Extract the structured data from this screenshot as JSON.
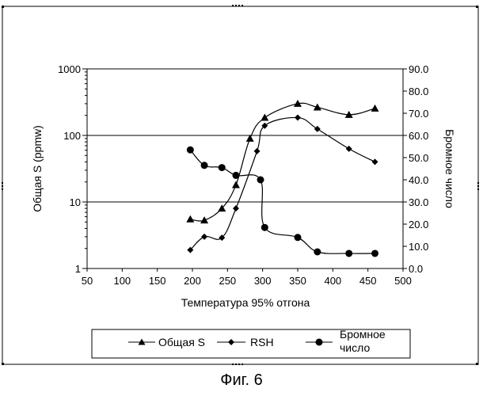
{
  "caption": "Фиг. 6",
  "chart_data": {
    "type": "line",
    "xlabel": "Температура 95% отгона",
    "ylabel_left": "Общая S (ppmw)",
    "ylabel_right": "Бромное число",
    "xlim": [
      50,
      500
    ],
    "x_ticks": [
      50,
      100,
      150,
      200,
      250,
      300,
      350,
      400,
      450,
      500
    ],
    "ylim_left": [
      1,
      1000
    ],
    "y_scale_left": "log",
    "y_ticks_left": [
      1,
      10,
      100,
      1000
    ],
    "ylim_right": [
      0,
      90
    ],
    "y_ticks_right": [
      "0.0",
      "10.0",
      "20.0",
      "30.0",
      "40.0",
      "50.0",
      "60.0",
      "70.0",
      "80.0",
      "90.0"
    ],
    "grid": "horizontal at left-axis decades",
    "legend_position": "bottom",
    "series": [
      {
        "name": "Общая S",
        "axis": "left",
        "marker": "triangle",
        "x": [
          197,
          217,
          242,
          262,
          282,
          303,
          350,
          378,
          423,
          460
        ],
        "y": [
          5.5,
          5.3,
          8,
          18,
          90,
          185,
          300,
          265,
          205,
          255
        ]
      },
      {
        "name": "RSH",
        "axis": "left",
        "marker": "diamond",
        "x": [
          197,
          217,
          242,
          262,
          292,
          303,
          350,
          378,
          423,
          460
        ],
        "y": [
          1.9,
          3.0,
          2.9,
          8,
          58,
          140,
          185,
          125,
          63,
          40
        ]
      },
      {
        "name": "Бромное число",
        "axis": "right",
        "marker": "circle",
        "x": [
          197,
          217,
          242,
          262,
          297,
          303,
          350,
          378,
          423,
          460
        ],
        "y": [
          53.5,
          46.5,
          45.5,
          42.0,
          40.0,
          18.5,
          14.0,
          7.5,
          6.8,
          6.8
        ]
      }
    ]
  }
}
